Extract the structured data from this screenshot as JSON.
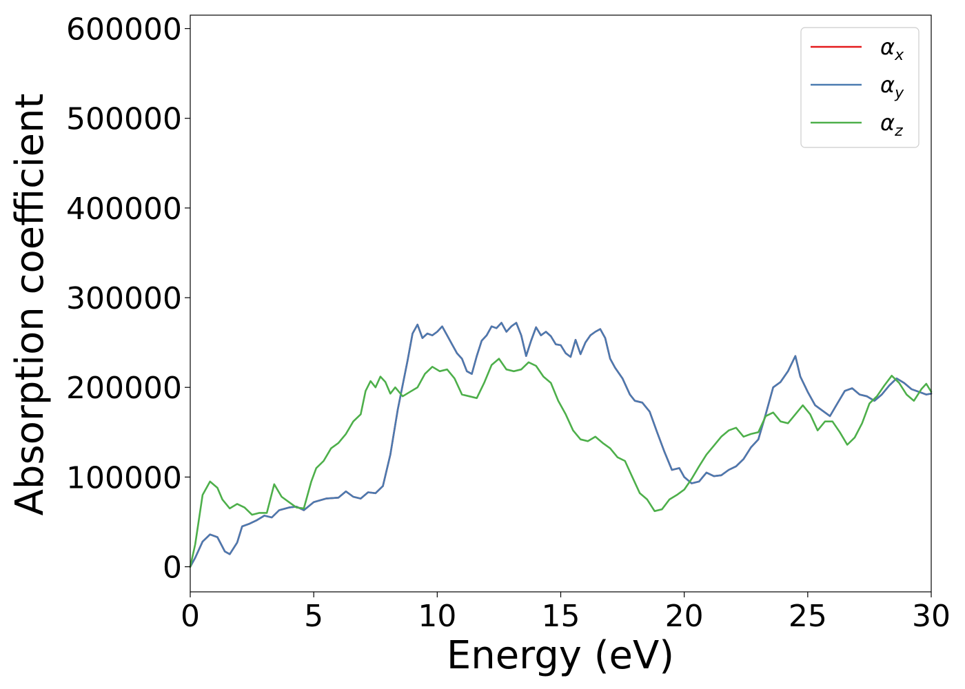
{
  "chart_data": {
    "type": "line",
    "title": "",
    "xlabel": "Energy (eV)",
    "ylabel": "Absorption coefficient",
    "xlim": [
      0,
      30
    ],
    "ylim": [
      -28000,
      615000
    ],
    "xticks": [
      0,
      5,
      10,
      15,
      20,
      25,
      30
    ],
    "xtick_labels": [
      "0",
      "5",
      "10",
      "15",
      "20",
      "25",
      "30"
    ],
    "yticks": [
      0,
      100000,
      200000,
      300000,
      400000,
      500000,
      600000
    ],
    "ytick_labels": [
      "0",
      "100000",
      "200000",
      "300000",
      "400000",
      "500000",
      "600000"
    ],
    "grid": false,
    "legend_position": "top-right",
    "series": [
      {
        "name": "α_x",
        "legend_main": "α",
        "legend_sub": "x",
        "color": "#e41a1c",
        "x": [
          0,
          0.2,
          0.5,
          0.8,
          1.1,
          1.4,
          1.6,
          1.9,
          2.1,
          2.4,
          2.7,
          3.0,
          3.3,
          3.6,
          4.0,
          4.3,
          4.6,
          5.0,
          5.5,
          6.0,
          6.3,
          6.6,
          6.9,
          7.2,
          7.5,
          7.8,
          8.1,
          8.4,
          8.8,
          9.0,
          9.2,
          9.4,
          9.6,
          9.8,
          10.0,
          10.2,
          10.4,
          10.6,
          10.8,
          11.0,
          11.2,
          11.4,
          11.6,
          11.8,
          12.0,
          12.2,
          12.4,
          12.6,
          12.8,
          13.0,
          13.2,
          13.4,
          13.6,
          13.8,
          14.0,
          14.2,
          14.4,
          14.6,
          14.8,
          15.0,
          15.2,
          15.4,
          15.6,
          15.8,
          16.0,
          16.2,
          16.4,
          16.6,
          16.8,
          17.0,
          17.2,
          17.5,
          17.8,
          18.0,
          18.3,
          18.6,
          18.9,
          19.2,
          19.5,
          19.8,
          20.0,
          20.3,
          20.6,
          20.9,
          21.2,
          21.5,
          21.8,
          22.1,
          22.4,
          22.7,
          23.0,
          23.3,
          23.6,
          23.9,
          24.2,
          24.5,
          24.7,
          25.0,
          25.3,
          25.6,
          25.9,
          26.2,
          26.5,
          26.8,
          27.1,
          27.4,
          27.7,
          28.0,
          28.3,
          28.6,
          28.9,
          29.2,
          29.5,
          29.8,
          30.0
        ],
        "values": [
          0,
          10000,
          28000,
          36000,
          33000,
          17000,
          14000,
          27000,
          45000,
          48000,
          52000,
          57000,
          55000,
          63000,
          66000,
          67000,
          63000,
          72000,
          76000,
          77000,
          84000,
          78000,
          76000,
          83000,
          82000,
          90000,
          125000,
          175000,
          230000,
          260000,
          270000,
          255000,
          260000,
          258000,
          262000,
          268000,
          258000,
          248000,
          238000,
          232000,
          218000,
          215000,
          235000,
          252000,
          258000,
          268000,
          266000,
          272000,
          262000,
          268000,
          272000,
          258000,
          235000,
          252000,
          267000,
          258000,
          262000,
          257000,
          248000,
          247000,
          238000,
          234000,
          253000,
          237000,
          250000,
          258000,
          262000,
          265000,
          255000,
          232000,
          222000,
          210000,
          192000,
          185000,
          183000,
          173000,
          150000,
          128000,
          108000,
          110000,
          100000,
          93000,
          95000,
          105000,
          101000,
          102000,
          108000,
          112000,
          120000,
          133000,
          142000,
          170000,
          200000,
          206000,
          218000,
          235000,
          212000,
          195000,
          180000,
          174000,
          168000,
          182000,
          196000,
          199000,
          192000,
          190000,
          185000,
          192000,
          202000,
          210000,
          205000,
          198000,
          195000,
          192000,
          193000
        ]
      },
      {
        "name": "α_y",
        "legend_main": "α",
        "legend_sub": "y",
        "color": "#4a7ab0",
        "x": [
          0,
          0.2,
          0.5,
          0.8,
          1.1,
          1.4,
          1.6,
          1.9,
          2.1,
          2.4,
          2.7,
          3.0,
          3.3,
          3.6,
          4.0,
          4.3,
          4.6,
          5.0,
          5.5,
          6.0,
          6.3,
          6.6,
          6.9,
          7.2,
          7.5,
          7.8,
          8.1,
          8.4,
          8.8,
          9.0,
          9.2,
          9.4,
          9.6,
          9.8,
          10.0,
          10.2,
          10.4,
          10.6,
          10.8,
          11.0,
          11.2,
          11.4,
          11.6,
          11.8,
          12.0,
          12.2,
          12.4,
          12.6,
          12.8,
          13.0,
          13.2,
          13.4,
          13.6,
          13.8,
          14.0,
          14.2,
          14.4,
          14.6,
          14.8,
          15.0,
          15.2,
          15.4,
          15.6,
          15.8,
          16.0,
          16.2,
          16.4,
          16.6,
          16.8,
          17.0,
          17.2,
          17.5,
          17.8,
          18.0,
          18.3,
          18.6,
          18.9,
          19.2,
          19.5,
          19.8,
          20.0,
          20.3,
          20.6,
          20.9,
          21.2,
          21.5,
          21.8,
          22.1,
          22.4,
          22.7,
          23.0,
          23.3,
          23.6,
          23.9,
          24.2,
          24.5,
          24.7,
          25.0,
          25.3,
          25.6,
          25.9,
          26.2,
          26.5,
          26.8,
          27.1,
          27.4,
          27.7,
          28.0,
          28.3,
          28.6,
          28.9,
          29.2,
          29.5,
          29.8,
          30.0
        ],
        "values": [
          0,
          10000,
          28000,
          36000,
          33000,
          17000,
          14000,
          27000,
          45000,
          48000,
          52000,
          57000,
          55000,
          63000,
          66000,
          67000,
          63000,
          72000,
          76000,
          77000,
          84000,
          78000,
          76000,
          83000,
          82000,
          90000,
          125000,
          175000,
          230000,
          260000,
          270000,
          255000,
          260000,
          258000,
          262000,
          268000,
          258000,
          248000,
          238000,
          232000,
          218000,
          215000,
          235000,
          252000,
          258000,
          268000,
          266000,
          272000,
          262000,
          268000,
          272000,
          258000,
          235000,
          252000,
          267000,
          258000,
          262000,
          257000,
          248000,
          247000,
          238000,
          234000,
          253000,
          237000,
          250000,
          258000,
          262000,
          265000,
          255000,
          232000,
          222000,
          210000,
          192000,
          185000,
          183000,
          173000,
          150000,
          128000,
          108000,
          110000,
          100000,
          93000,
          95000,
          105000,
          101000,
          102000,
          108000,
          112000,
          120000,
          133000,
          142000,
          170000,
          200000,
          206000,
          218000,
          235000,
          212000,
          195000,
          180000,
          174000,
          168000,
          182000,
          196000,
          199000,
          192000,
          190000,
          185000,
          192000,
          202000,
          210000,
          205000,
          198000,
          195000,
          192000,
          193000
        ]
      },
      {
        "name": "α_z",
        "legend_main": "α",
        "legend_sub": "z",
        "color": "#4daf4a",
        "x": [
          0,
          0.2,
          0.5,
          0.8,
          1.1,
          1.3,
          1.6,
          1.9,
          2.2,
          2.5,
          2.8,
          3.1,
          3.4,
          3.7,
          4.0,
          4.3,
          4.6,
          4.9,
          5.1,
          5.4,
          5.7,
          6.0,
          6.3,
          6.6,
          6.9,
          7.1,
          7.3,
          7.5,
          7.7,
          7.9,
          8.1,
          8.3,
          8.6,
          8.9,
          9.2,
          9.5,
          9.8,
          10.1,
          10.4,
          10.7,
          11.0,
          11.3,
          11.6,
          11.9,
          12.2,
          12.5,
          12.8,
          13.1,
          13.4,
          13.7,
          14.0,
          14.3,
          14.6,
          14.9,
          15.2,
          15.5,
          15.8,
          16.1,
          16.4,
          16.7,
          17.0,
          17.3,
          17.6,
          17.9,
          18.2,
          18.5,
          18.8,
          19.1,
          19.4,
          19.7,
          20.0,
          20.3,
          20.6,
          20.9,
          21.2,
          21.5,
          21.8,
          22.1,
          22.4,
          22.7,
          23.0,
          23.3,
          23.6,
          23.9,
          24.2,
          24.5,
          24.8,
          25.1,
          25.4,
          25.7,
          26.0,
          26.3,
          26.6,
          26.9,
          27.2,
          27.5,
          27.8,
          28.1,
          28.4,
          28.7,
          29.0,
          29.3,
          29.6,
          29.8,
          30.0
        ],
        "values": [
          0,
          25000,
          80000,
          95000,
          88000,
          75000,
          65000,
          70000,
          66000,
          58000,
          60000,
          60000,
          92000,
          78000,
          72000,
          66000,
          65000,
          95000,
          110000,
          118000,
          132000,
          138000,
          148000,
          162000,
          170000,
          196000,
          207000,
          200000,
          212000,
          206000,
          193000,
          200000,
          190000,
          195000,
          200000,
          215000,
          223000,
          218000,
          220000,
          210000,
          192000,
          190000,
          188000,
          205000,
          225000,
          232000,
          220000,
          218000,
          220000,
          228000,
          224000,
          212000,
          205000,
          185000,
          170000,
          152000,
          142000,
          140000,
          145000,
          138000,
          132000,
          122000,
          118000,
          100000,
          82000,
          75000,
          62000,
          64000,
          75000,
          80000,
          86000,
          98000,
          112000,
          125000,
          135000,
          145000,
          152000,
          155000,
          145000,
          148000,
          150000,
          168000,
          172000,
          162000,
          160000,
          170000,
          180000,
          170000,
          152000,
          162000,
          162000,
          150000,
          136000,
          144000,
          160000,
          182000,
          190000,
          202000,
          213000,
          205000,
          192000,
          185000,
          198000,
          204000,
          195000
        ]
      }
    ]
  }
}
